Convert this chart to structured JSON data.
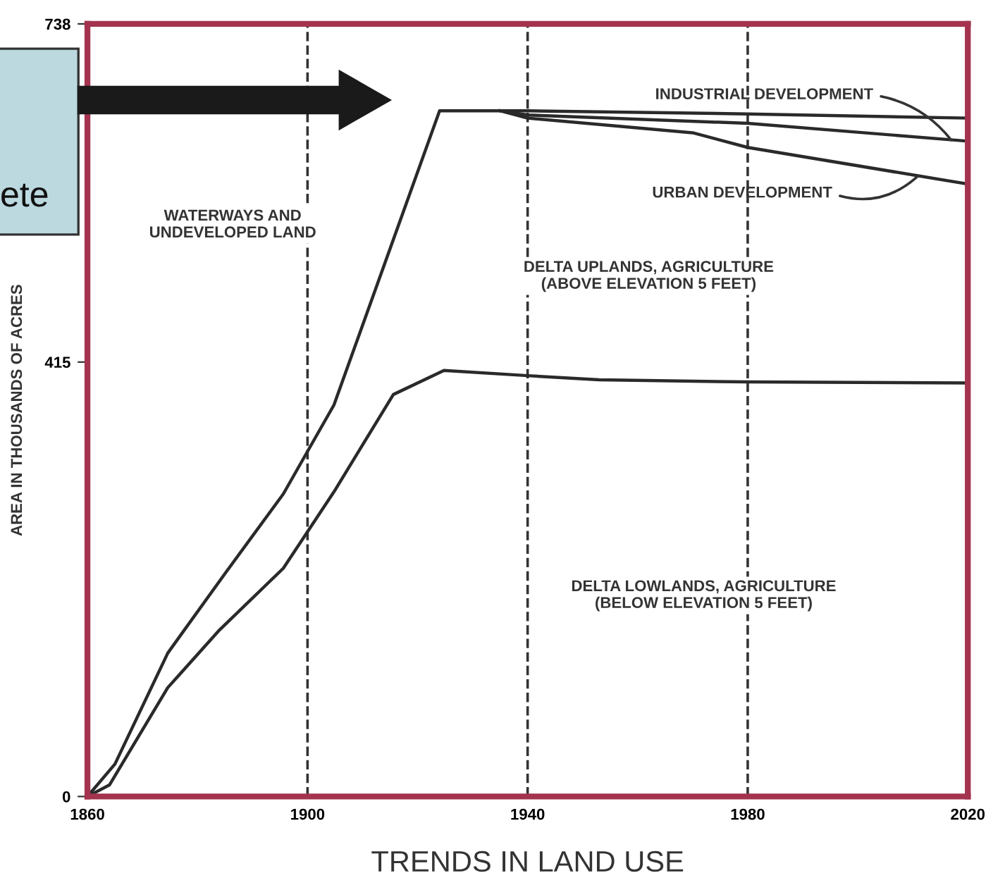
{
  "chart_data": {
    "type": "line",
    "xlabel": "TRENDS IN LAND USE",
    "ylabel": "AREA IN THOUSANDS OF ACRES",
    "series": [
      {
        "color": "#2a2a2a",
        "x": [
          1860,
          1865,
          1874.6,
          1885,
          1895.6,
          1904.8,
          1924,
          1935,
          1940,
          1980,
          2020
        ],
        "values": [
          0,
          31,
          137,
          213,
          289,
          374,
          655,
          655,
          655,
          652,
          648
        ]
      },
      {
        "color": "#2a2a2a",
        "x": [
          1935,
          1940,
          1980,
          2020
        ],
        "values": [
          655,
          651,
          643,
          626
        ]
      },
      {
        "color": "#2a2a2a",
        "x": [
          1935,
          1940,
          1970,
          1980,
          2020
        ],
        "values": [
          655,
          648,
          634,
          620,
          585
        ]
      },
      {
        "color": "#2a2a2a",
        "x": [
          1860,
          1864,
          1874.6,
          1883.8,
          1895.6,
          1904.8,
          1915.6,
          1924.8,
          1940,
          1953,
          1980,
          2020
        ],
        "values": [
          0,
          11,
          104,
          158,
          218,
          291,
          384,
          407,
          402,
          398,
          396,
          395
        ]
      }
    ],
    "xlim": [
      1860,
      2020
    ],
    "ylim": [
      0,
      738
    ],
    "xticks": [
      1860,
      1900,
      1940,
      1980,
      2020
    ],
    "yticks": [
      0,
      415,
      738
    ],
    "ref_lines": [
      {
        "axis": "x",
        "value": 1900,
        "color": "#333333",
        "line_style": "dashed"
      },
      {
        "axis": "x",
        "value": 1940,
        "color": "#333333",
        "line_style": "dashed"
      },
      {
        "axis": "x",
        "value": 1980,
        "color": "#333333",
        "line_style": "dashed"
      }
    ],
    "annotations": [
      "ete",
      "WATERWAYS AND\nUNDEVELOPED LAND",
      "DELTA UPLANDS, AGRICULTURE\n(ABOVE ELEVATION 5 FEET)",
      "DELTA LOWLANDS, AGRICULTURE\n(BELOW ELEVATION 5 FEET)",
      {
        "text": "INDUSTRIAL DEVELOPMENT",
        "x": 2017,
        "y": 627
      },
      {
        "text": "URBAN DEVELOPMENT",
        "x": 2011,
        "y": 593
      }
    ],
    "grid": false,
    "legend": false,
    "marker": "none",
    "line_style": "solid"
  }
}
